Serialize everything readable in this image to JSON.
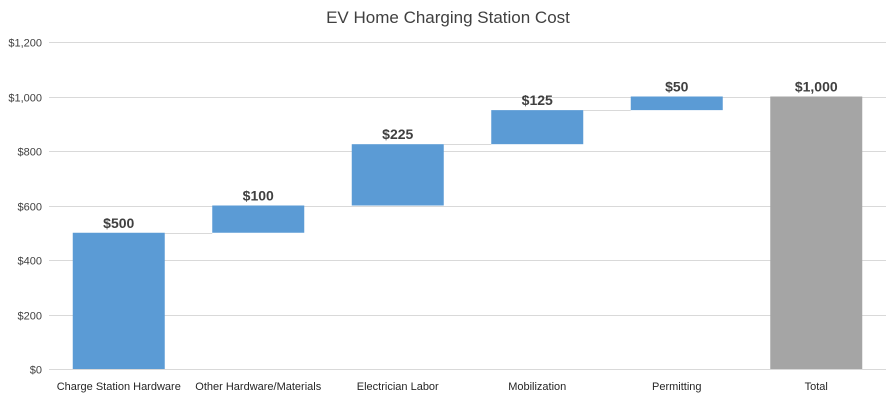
{
  "chart_data": {
    "type": "bar",
    "subtype": "waterfall",
    "title": "EV Home Charging Station Cost",
    "xlabel": "",
    "ylabel": "",
    "categories": [
      "Charge Station Hardware",
      "Other Hardware/Materials",
      "Electrician Labor",
      "Mobilization",
      "Permitting",
      "Total"
    ],
    "values": [
      500,
      100,
      225,
      125,
      50,
      1000
    ],
    "bases": [
      0,
      500,
      600,
      825,
      950,
      0
    ],
    "data_labels": [
      "$500",
      "$100",
      "$225",
      "$125",
      "$50",
      "$1,000"
    ],
    "bar_kinds": [
      "increase",
      "increase",
      "increase",
      "increase",
      "increase",
      "total"
    ],
    "ylim": [
      0,
      1200
    ],
    "yticks": [
      0,
      200,
      400,
      600,
      800,
      1000,
      1200
    ],
    "ytick_labels": [
      "$0",
      "$200",
      "$400",
      "$600",
      "$800",
      "$1,000",
      "$1,200"
    ],
    "grid": true,
    "legend": "none",
    "colors": {
      "increase": "#5b9bd5",
      "total": "#a5a5a5",
      "grid": "#d9d9d9",
      "connector": "#d9d9d9"
    }
  }
}
